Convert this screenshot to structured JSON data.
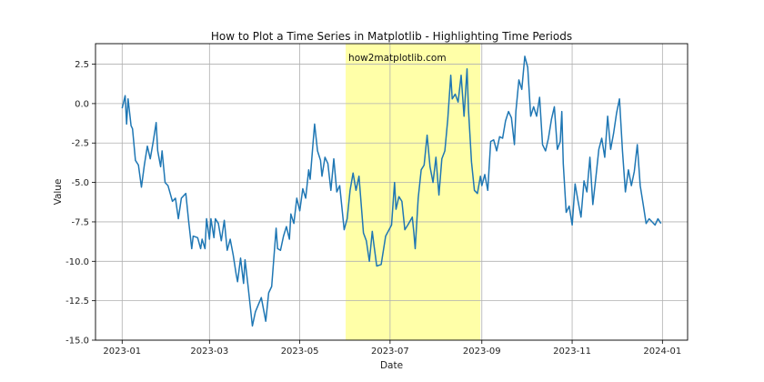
{
  "chart_data": {
    "type": "line",
    "title": "How to Plot a Time Series in Matplotlib - Highlighting Time Periods",
    "xlabel": "Date",
    "ylabel": "Value",
    "annotation": "how2matplotlib.com",
    "grid": true,
    "xlim": [
      "2022-12-14",
      "2024-01-18"
    ],
    "ylim": [
      -15.0,
      3.8
    ],
    "x_ticks": [
      "2023-01",
      "2023-03",
      "2023-05",
      "2023-07",
      "2023-09",
      "2023-11",
      "2024-01"
    ],
    "y_ticks": [
      2.5,
      0.0,
      -2.5,
      -5.0,
      -7.5,
      -10.0,
      -12.5,
      -15.0
    ],
    "highlight": {
      "start": "2023-06-01",
      "end": "2023-08-31",
      "color": "#ffff99"
    },
    "series": [
      {
        "color": "#1f77b4",
        "points": [
          [
            "2023-01-01",
            -0.3
          ],
          [
            "2023-01-03",
            0.5
          ],
          [
            "2023-01-04",
            -1.3
          ],
          [
            "2023-01-05",
            0.3
          ],
          [
            "2023-01-07",
            -1.4
          ],
          [
            "2023-01-08",
            -1.6
          ],
          [
            "2023-01-10",
            -3.6
          ],
          [
            "2023-01-12",
            -3.9
          ],
          [
            "2023-01-14",
            -5.3
          ],
          [
            "2023-01-16",
            -3.9
          ],
          [
            "2023-01-18",
            -2.7
          ],
          [
            "2023-01-20",
            -3.5
          ],
          [
            "2023-01-22",
            -2.4
          ],
          [
            "2023-01-24",
            -1.2
          ],
          [
            "2023-01-25",
            -3.0
          ],
          [
            "2023-01-27",
            -4.0
          ],
          [
            "2023-01-28",
            -3.0
          ],
          [
            "2023-01-30",
            -5.0
          ],
          [
            "2023-02-01",
            -5.2
          ],
          [
            "2023-02-04",
            -6.2
          ],
          [
            "2023-02-06",
            -6.0
          ],
          [
            "2023-02-08",
            -7.3
          ],
          [
            "2023-02-10",
            -6.0
          ],
          [
            "2023-02-13",
            -5.7
          ],
          [
            "2023-02-15",
            -7.5
          ],
          [
            "2023-02-17",
            -9.2
          ],
          [
            "2023-02-18",
            -8.4
          ],
          [
            "2023-02-21",
            -8.5
          ],
          [
            "2023-02-23",
            -9.2
          ],
          [
            "2023-02-24",
            -8.6
          ],
          [
            "2023-02-26",
            -9.2
          ],
          [
            "2023-02-27",
            -7.3
          ],
          [
            "2023-03-01",
            -8.6
          ],
          [
            "2023-03-02",
            -7.3
          ],
          [
            "2023-03-04",
            -8.5
          ],
          [
            "2023-03-05",
            -7.3
          ],
          [
            "2023-03-07",
            -7.6
          ],
          [
            "2023-03-09",
            -8.7
          ],
          [
            "2023-03-11",
            -7.4
          ],
          [
            "2023-03-13",
            -9.3
          ],
          [
            "2023-03-15",
            -8.6
          ],
          [
            "2023-03-17",
            -9.6
          ],
          [
            "2023-03-19",
            -10.8
          ],
          [
            "2023-03-20",
            -11.3
          ],
          [
            "2023-03-22",
            -9.8
          ],
          [
            "2023-03-24",
            -11.4
          ],
          [
            "2023-03-25",
            -9.9
          ],
          [
            "2023-03-27",
            -11.5
          ],
          [
            "2023-03-30",
            -14.1
          ],
          [
            "2023-04-01",
            -13.2
          ],
          [
            "2023-04-05",
            -12.3
          ],
          [
            "2023-04-08",
            -13.8
          ],
          [
            "2023-04-10",
            -12.0
          ],
          [
            "2023-04-12",
            -11.6
          ],
          [
            "2023-04-15",
            -7.9
          ],
          [
            "2023-04-16",
            -9.2
          ],
          [
            "2023-04-18",
            -9.3
          ],
          [
            "2023-04-20",
            -8.4
          ],
          [
            "2023-04-22",
            -7.8
          ],
          [
            "2023-04-24",
            -8.6
          ],
          [
            "2023-04-25",
            -7.0
          ],
          [
            "2023-04-27",
            -7.6
          ],
          [
            "2023-04-29",
            -6.0
          ],
          [
            "2023-05-01",
            -6.8
          ],
          [
            "2023-05-03",
            -5.4
          ],
          [
            "2023-05-05",
            -6.0
          ],
          [
            "2023-05-07",
            -4.2
          ],
          [
            "2023-05-08",
            -4.8
          ],
          [
            "2023-05-10",
            -2.5
          ],
          [
            "2023-05-11",
            -1.3
          ],
          [
            "2023-05-13",
            -3.0
          ],
          [
            "2023-05-15",
            -3.6
          ],
          [
            "2023-05-16",
            -4.6
          ],
          [
            "2023-05-18",
            -3.4
          ],
          [
            "2023-05-20",
            -3.8
          ],
          [
            "2023-05-22",
            -5.5
          ],
          [
            "2023-05-24",
            -3.5
          ],
          [
            "2023-05-26",
            -5.6
          ],
          [
            "2023-05-28",
            -5.2
          ],
          [
            "2023-05-31",
            -8.0
          ],
          [
            "2023-06-02",
            -7.3
          ],
          [
            "2023-06-04",
            -5.5
          ],
          [
            "2023-06-06",
            -4.4
          ],
          [
            "2023-06-08",
            -5.5
          ],
          [
            "2023-06-10",
            -4.6
          ],
          [
            "2023-06-13",
            -8.2
          ],
          [
            "2023-06-15",
            -8.7
          ],
          [
            "2023-06-17",
            -10.0
          ],
          [
            "2023-06-19",
            -8.1
          ],
          [
            "2023-06-20",
            -8.9
          ],
          [
            "2023-06-22",
            -10.3
          ],
          [
            "2023-06-25",
            -10.2
          ],
          [
            "2023-06-28",
            -8.4
          ],
          [
            "2023-07-02",
            -7.7
          ],
          [
            "2023-07-04",
            -5.0
          ],
          [
            "2023-07-05",
            -6.7
          ],
          [
            "2023-07-07",
            -5.9
          ],
          [
            "2023-07-09",
            -6.2
          ],
          [
            "2023-07-11",
            -8.0
          ],
          [
            "2023-07-13",
            -7.7
          ],
          [
            "2023-07-16",
            -7.2
          ],
          [
            "2023-07-17",
            -8.1
          ],
          [
            "2023-07-18",
            -9.2
          ],
          [
            "2023-07-20",
            -6.0
          ],
          [
            "2023-07-22",
            -4.2
          ],
          [
            "2023-07-24",
            -3.9
          ],
          [
            "2023-07-26",
            -2.0
          ],
          [
            "2023-07-28",
            -4.0
          ],
          [
            "2023-07-30",
            -5.0
          ],
          [
            "2023-08-01",
            -3.4
          ],
          [
            "2023-08-03",
            -5.8
          ],
          [
            "2023-08-05",
            -3.5
          ],
          [
            "2023-08-07",
            -3.0
          ],
          [
            "2023-08-09",
            -1.0
          ],
          [
            "2023-08-11",
            1.8
          ],
          [
            "2023-08-12",
            0.3
          ],
          [
            "2023-08-14",
            0.6
          ],
          [
            "2023-08-16",
            0.1
          ],
          [
            "2023-08-18",
            1.8
          ],
          [
            "2023-08-20",
            -0.8
          ],
          [
            "2023-08-22",
            2.2
          ],
          [
            "2023-08-23",
            -0.4
          ],
          [
            "2023-08-25",
            -3.7
          ],
          [
            "2023-08-27",
            -5.5
          ],
          [
            "2023-08-29",
            -5.7
          ],
          [
            "2023-08-31",
            -4.6
          ],
          [
            "2023-09-01",
            -5.2
          ],
          [
            "2023-09-03",
            -4.5
          ],
          [
            "2023-09-05",
            -5.5
          ],
          [
            "2023-09-07",
            -2.4
          ],
          [
            "2023-09-09",
            -2.3
          ],
          [
            "2023-09-11",
            -3.0
          ],
          [
            "2023-09-13",
            -2.1
          ],
          [
            "2023-09-15",
            -2.2
          ],
          [
            "2023-09-17",
            -1.1
          ],
          [
            "2023-09-19",
            -0.5
          ],
          [
            "2023-09-21",
            -0.9
          ],
          [
            "2023-09-23",
            -2.6
          ],
          [
            "2023-09-24",
            -0.5
          ],
          [
            "2023-09-26",
            1.5
          ],
          [
            "2023-09-28",
            0.9
          ],
          [
            "2023-09-30",
            3.0
          ],
          [
            "2023-10-02",
            2.3
          ],
          [
            "2023-10-04",
            -0.8
          ],
          [
            "2023-10-06",
            -0.2
          ],
          [
            "2023-10-08",
            -0.8
          ],
          [
            "2023-10-10",
            0.4
          ],
          [
            "2023-10-12",
            -2.6
          ],
          [
            "2023-10-14",
            -3.0
          ],
          [
            "2023-10-16",
            -2.2
          ],
          [
            "2023-10-18",
            -1.0
          ],
          [
            "2023-10-20",
            -0.2
          ],
          [
            "2023-10-22",
            -2.9
          ],
          [
            "2023-10-24",
            -2.4
          ],
          [
            "2023-10-25",
            -0.5
          ],
          [
            "2023-10-26",
            -3.8
          ],
          [
            "2023-10-28",
            -6.9
          ],
          [
            "2023-10-30",
            -6.5
          ],
          [
            "2023-11-01",
            -7.7
          ],
          [
            "2023-11-03",
            -5.1
          ],
          [
            "2023-11-05",
            -6.2
          ],
          [
            "2023-11-07",
            -7.2
          ],
          [
            "2023-11-09",
            -4.9
          ],
          [
            "2023-11-11",
            -5.6
          ],
          [
            "2023-11-13",
            -3.4
          ],
          [
            "2023-11-15",
            -6.4
          ],
          [
            "2023-11-17",
            -4.7
          ],
          [
            "2023-11-19",
            -2.9
          ],
          [
            "2023-11-21",
            -2.2
          ],
          [
            "2023-11-23",
            -3.4
          ],
          [
            "2023-11-25",
            -0.8
          ],
          [
            "2023-11-27",
            -2.9
          ],
          [
            "2023-11-29",
            -1.9
          ],
          [
            "2023-12-01",
            -0.6
          ],
          [
            "2023-12-03",
            0.3
          ],
          [
            "2023-12-05",
            -3.0
          ],
          [
            "2023-12-07",
            -5.6
          ],
          [
            "2023-12-09",
            -4.2
          ],
          [
            "2023-12-11",
            -5.2
          ],
          [
            "2023-12-13",
            -4.3
          ],
          [
            "2023-12-15",
            -2.6
          ],
          [
            "2023-12-17",
            -5.2
          ],
          [
            "2023-12-19",
            -6.4
          ],
          [
            "2023-12-21",
            -7.6
          ],
          [
            "2023-12-23",
            -7.3
          ],
          [
            "2023-12-25",
            -7.5
          ],
          [
            "2023-12-27",
            -7.7
          ],
          [
            "2023-12-29",
            -7.3
          ],
          [
            "2023-12-31",
            -7.6
          ]
        ]
      }
    ]
  }
}
